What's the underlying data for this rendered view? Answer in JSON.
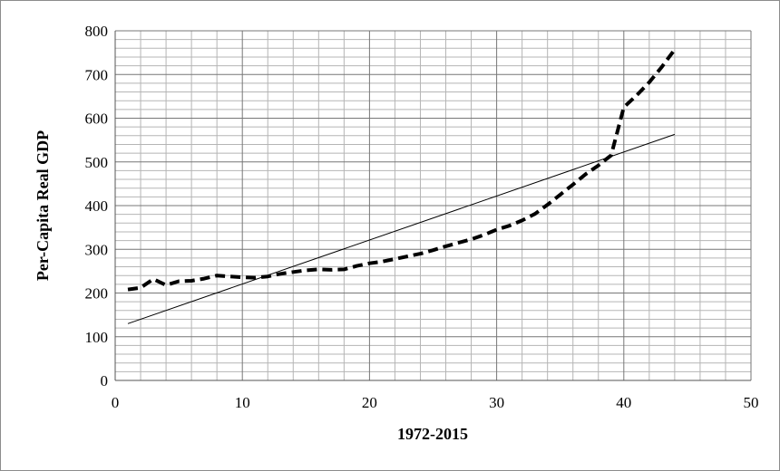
{
  "chart_data": {
    "type": "line",
    "title": "",
    "xlabel": "1972-2015",
    "ylabel": "Per-Capita Real GDP",
    "xlim": [
      0,
      50
    ],
    "ylim": [
      0,
      800
    ],
    "x_ticks": [
      0,
      10,
      20,
      30,
      40,
      50
    ],
    "y_ticks": [
      0,
      100,
      200,
      300,
      400,
      500,
      600,
      700,
      800
    ],
    "x_tick_labels": [
      "0",
      "10",
      "20",
      "30",
      "40",
      "50"
    ],
    "y_tick_labels": [
      "0",
      "100",
      "200",
      "300",
      "400",
      "500",
      "600",
      "700",
      "800"
    ],
    "grid": true,
    "minor_grid": true,
    "legend": "none",
    "series": [
      {
        "style": "dashed",
        "color": "#000000",
        "x": [
          1,
          2,
          3,
          4,
          5,
          6,
          7,
          8,
          9,
          10,
          11,
          12,
          13,
          14,
          15,
          16,
          17,
          18,
          19,
          20,
          21,
          22,
          23,
          24,
          25,
          26,
          27,
          28,
          29,
          30,
          31,
          32,
          33,
          34,
          35,
          36,
          37,
          38,
          39,
          40,
          41,
          42,
          43,
          44
        ],
        "values": [
          208,
          212,
          232,
          218,
          227,
          228,
          233,
          240,
          238,
          236,
          235,
          238,
          244,
          248,
          252,
          254,
          253,
          254,
          262,
          268,
          272,
          278,
          284,
          290,
          298,
          307,
          315,
          323,
          333,
          345,
          354,
          366,
          381,
          402,
          425,
          448,
          472,
          492,
          515,
          625,
          652,
          682,
          718,
          757
        ]
      },
      {
        "style": "solid",
        "color": "#000000",
        "x": [
          1,
          44
        ],
        "values": [
          130,
          563
        ]
      }
    ]
  }
}
